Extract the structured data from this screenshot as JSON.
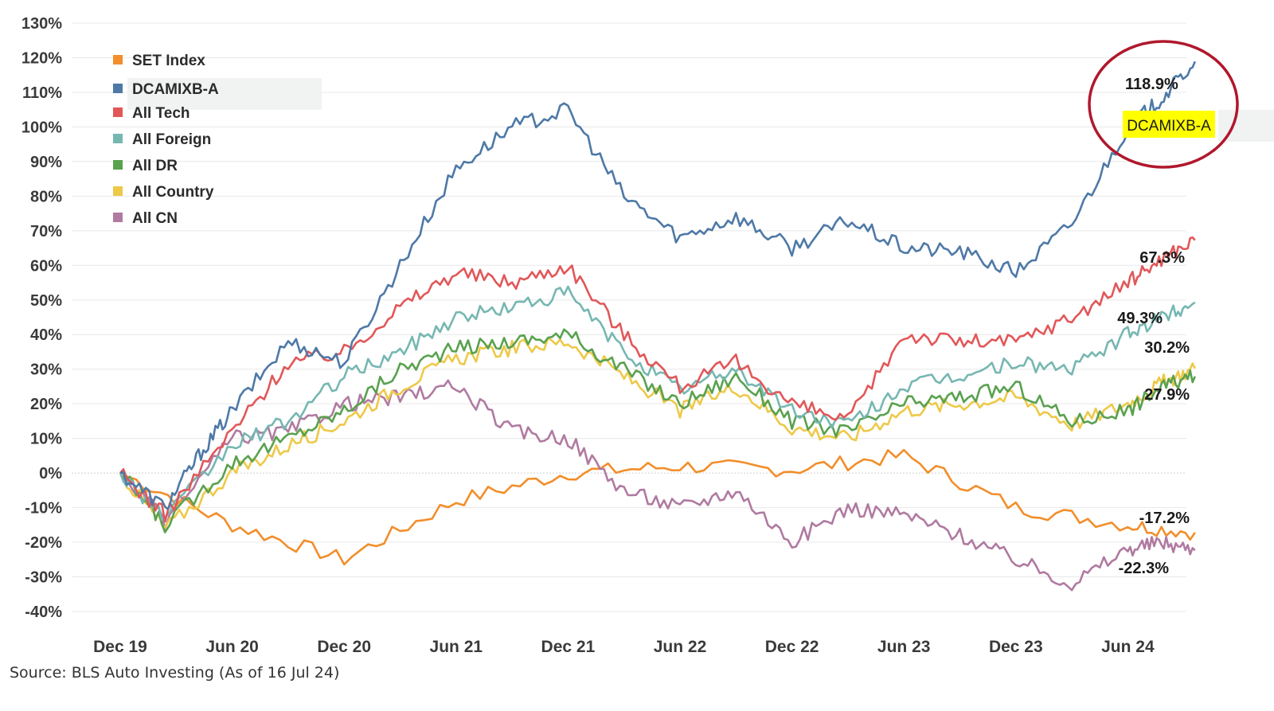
{
  "chart_data": {
    "type": "line",
    "title": "",
    "xlabel": "",
    "ylabel": "",
    "ylim": [
      -40,
      130
    ],
    "yticks": [
      130,
      120,
      110,
      100,
      90,
      80,
      70,
      60,
      50,
      40,
      30,
      20,
      10,
      0,
      -10,
      -20,
      -30,
      -40
    ],
    "ytick_labels": [
      "130%",
      "120%",
      "110%",
      "100%",
      "90%",
      "80%",
      "70%",
      "60%",
      "50%",
      "40%",
      "30%",
      "20%",
      "10%",
      "0%",
      "-10%",
      "-20%",
      "-30%",
      "-40%"
    ],
    "xticks": [
      "Dec 19",
      "Jun 20",
      "Dec 20",
      "Jun 21",
      "Dec 21",
      "Jun 22",
      "Dec 22",
      "Jun 23",
      "Dec 23",
      "Jun 24"
    ],
    "legend_position": "top-left",
    "series": [
      {
        "name": "SET Index",
        "color": "#F28E2B",
        "end_label": "-17.2%",
        "x": [
          0,
          1,
          2,
          3,
          4,
          5,
          6,
          7,
          8,
          9,
          9.6
        ],
        "y": [
          0,
          -15,
          -25,
          -8,
          0,
          2,
          1,
          5,
          -10,
          -15,
          -17.2
        ]
      },
      {
        "name": "DCAMIXB-A",
        "color": "#4E79A7",
        "end_label": "118.9%",
        "x": [
          0,
          0.4,
          0.7,
          1,
          1.5,
          2,
          2.5,
          3,
          3.5,
          4,
          4.5,
          5,
          5.5,
          6,
          6.5,
          7,
          7.5,
          8,
          8.5,
          9,
          9.3,
          9.6
        ],
        "y": [
          0,
          -10,
          5,
          18,
          38,
          32,
          60,
          88,
          100,
          105,
          80,
          68,
          74,
          65,
          73,
          65,
          64,
          58,
          72,
          100,
          108,
          118.9
        ]
      },
      {
        "name": "All Tech",
        "color": "#E15759",
        "end_label": "67.3%",
        "x": [
          0,
          0.4,
          1,
          1.5,
          2,
          2.5,
          3,
          3.5,
          4,
          4.5,
          5,
          5.5,
          6,
          6.5,
          7,
          7.5,
          8,
          8.5,
          9,
          9.3,
          9.6
        ],
        "y": [
          0,
          -12,
          12,
          32,
          35,
          48,
          58,
          55,
          60,
          40,
          25,
          32,
          20,
          15,
          40,
          38,
          38,
          45,
          55,
          62,
          67.3
        ]
      },
      {
        "name": "All Foreign",
        "color": "#76B7B2",
        "end_label": "49.3%",
        "x": [
          0,
          0.4,
          1,
          1.5,
          2,
          2.5,
          3,
          3.5,
          4,
          4.5,
          5,
          5.5,
          6,
          6.5,
          7,
          7.5,
          8,
          8.5,
          9,
          9.3,
          9.6
        ],
        "y": [
          0,
          -13,
          8,
          15,
          28,
          35,
          45,
          48,
          52,
          35,
          24,
          30,
          18,
          14,
          25,
          28,
          32,
          30,
          40,
          45,
          49.3
        ]
      },
      {
        "name": "All DR",
        "color": "#59A14F",
        "end_label": "27.9%",
        "x": [
          0,
          0.4,
          1,
          1.5,
          2,
          2.5,
          3,
          3.5,
          4,
          4.5,
          5,
          5.5,
          6,
          6.5,
          7,
          7.5,
          8,
          8.5,
          9,
          9.3,
          9.6
        ],
        "y": [
          0,
          -15,
          3,
          10,
          18,
          30,
          36,
          38,
          40,
          30,
          20,
          28,
          15,
          12,
          20,
          22,
          25,
          15,
          18,
          25,
          27.9
        ]
      },
      {
        "name": "All Country",
        "color": "#EDC948",
        "end_label": "30.2%",
        "x": [
          0,
          0.4,
          1,
          1.5,
          2,
          2.5,
          3,
          3.5,
          4,
          4.5,
          5,
          5.5,
          6,
          6.5,
          7,
          7.5,
          8,
          8.5,
          9,
          9.3,
          9.6
        ],
        "y": [
          0,
          -16,
          0,
          8,
          15,
          25,
          33,
          36,
          38,
          28,
          18,
          25,
          13,
          10,
          18,
          20,
          22,
          14,
          20,
          26,
          30.2
        ]
      },
      {
        "name": "All CN",
        "color": "#B07AA1",
        "end_label": "-22.3%",
        "x": [
          0,
          0.4,
          1,
          1.5,
          2,
          2.5,
          3,
          3.5,
          4,
          4.5,
          5,
          5.5,
          6,
          6.5,
          7,
          7.5,
          8,
          8.5,
          9,
          9.3,
          9.6
        ],
        "y": [
          0,
          -14,
          10,
          12,
          20,
          22,
          25,
          12,
          10,
          -5,
          -10,
          -5,
          -20,
          -10,
          -12,
          -18,
          -25,
          -32,
          -22,
          -20,
          -22.3
        ]
      }
    ],
    "highlight": {
      "label": "DCAMIXB-A",
      "value_label": "118.9%",
      "color": "#FFFF00"
    }
  },
  "source": "Source: BLS Auto Investing (As of 16 Jul 24)",
  "colors": {
    "circle": "#B0182C",
    "grid": "#e8e8e8",
    "legend_highlight_bg": "#f1f2f2"
  }
}
